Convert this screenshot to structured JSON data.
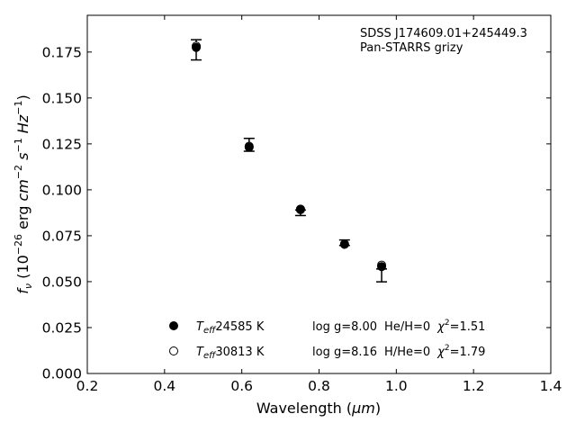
{
  "chart_data": {
    "type": "scatter",
    "xlabel_prefix": "Wavelength (",
    "xlabel_unit": "μm",
    "xlabel_suffix": ")",
    "ylabel": "fν (10⁻²⁶ erg cm⁻² s⁻¹ Hz⁻¹)",
    "xlim": [
      0.2,
      1.4
    ],
    "ylim": [
      0.0,
      0.195
    ],
    "x_ticks": [
      "0.2",
      "0.4",
      "0.6",
      "0.8",
      "1.0",
      "1.2",
      "1.4"
    ],
    "y_ticks": [
      "0.000",
      "0.025",
      "0.050",
      "0.075",
      "0.100",
      "0.125",
      "0.150",
      "0.175"
    ],
    "annotation_lines": [
      "SDSS J174609.01+245449.3",
      "Pan-STARRS grizy"
    ],
    "observed": {
      "x": [
        0.482,
        0.619,
        0.752,
        0.866,
        0.962
      ],
      "y": [
        0.1762,
        0.1245,
        0.0875,
        0.0712,
        0.0554
      ],
      "yerr_low": [
        0.0055,
        0.0035,
        0.0015,
        0.0015,
        0.0055
      ],
      "yerr_high": [
        0.0055,
        0.0035,
        0.0015,
        0.0015,
        0.0015
      ]
    },
    "series": [
      {
        "name": "Teff= 24585 K  log g=8.00  He/H=0  χ²=1.51",
        "marker": "filled-circle",
        "teff": "24585 K",
        "logg": "log g=8.00",
        "composition": "He/H=0",
        "chi2": "=1.51",
        "x": [
          0.482,
          0.619,
          0.752,
          0.866,
          0.962
        ],
        "y": [
          0.1775,
          0.1232,
          0.0892,
          0.0703,
          0.0582
        ]
      },
      {
        "name": "Teff= 30813 K  log g=8.16  H/He=0  χ²=1.79",
        "marker": "open-circle",
        "teff": "30813 K",
        "logg": "log g=8.16",
        "composition": "H/He=0",
        "chi2": "=1.79",
        "x": [
          0.482,
          0.619,
          0.752,
          0.866,
          0.962
        ],
        "y": [
          0.1782,
          0.1237,
          0.0895,
          0.0705,
          0.059
        ]
      }
    ],
    "grid": false,
    "legend_position": "bottom-center"
  }
}
